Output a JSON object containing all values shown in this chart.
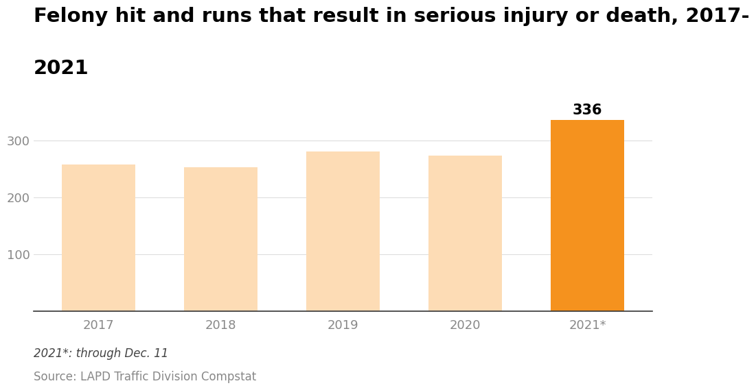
{
  "categories": [
    "2017",
    "2018",
    "2019",
    "2020",
    "2021*"
  ],
  "values": [
    258,
    253,
    281,
    273,
    336
  ],
  "bar_colors": [
    "#FDDCB5",
    "#FDDCB5",
    "#FDDCB5",
    "#FDDCB5",
    "#F5921E"
  ],
  "title_line1": "Felony hit and runs that result in serious injury or death, 2017-",
  "title_line2": "2021",
  "highlight_label": "336",
  "highlight_index": 4,
  "ylim": [
    0,
    380
  ],
  "yticks": [
    100,
    200,
    300
  ],
  "footnote1": "2021*: through Dec. 11",
  "footnote2": "Source: LAPD Traffic Division Compstat",
  "background_color": "#FFFFFF",
  "title_fontsize": 21,
  "tick_fontsize": 13,
  "footnote_fontsize": 12,
  "label_fontsize": 15,
  "footnote1_color": "#444444",
  "footnote2_color": "#888888",
  "tick_color": "#888888",
  "grid_color": "#DDDDDD",
  "bottom_spine_color": "#333333"
}
